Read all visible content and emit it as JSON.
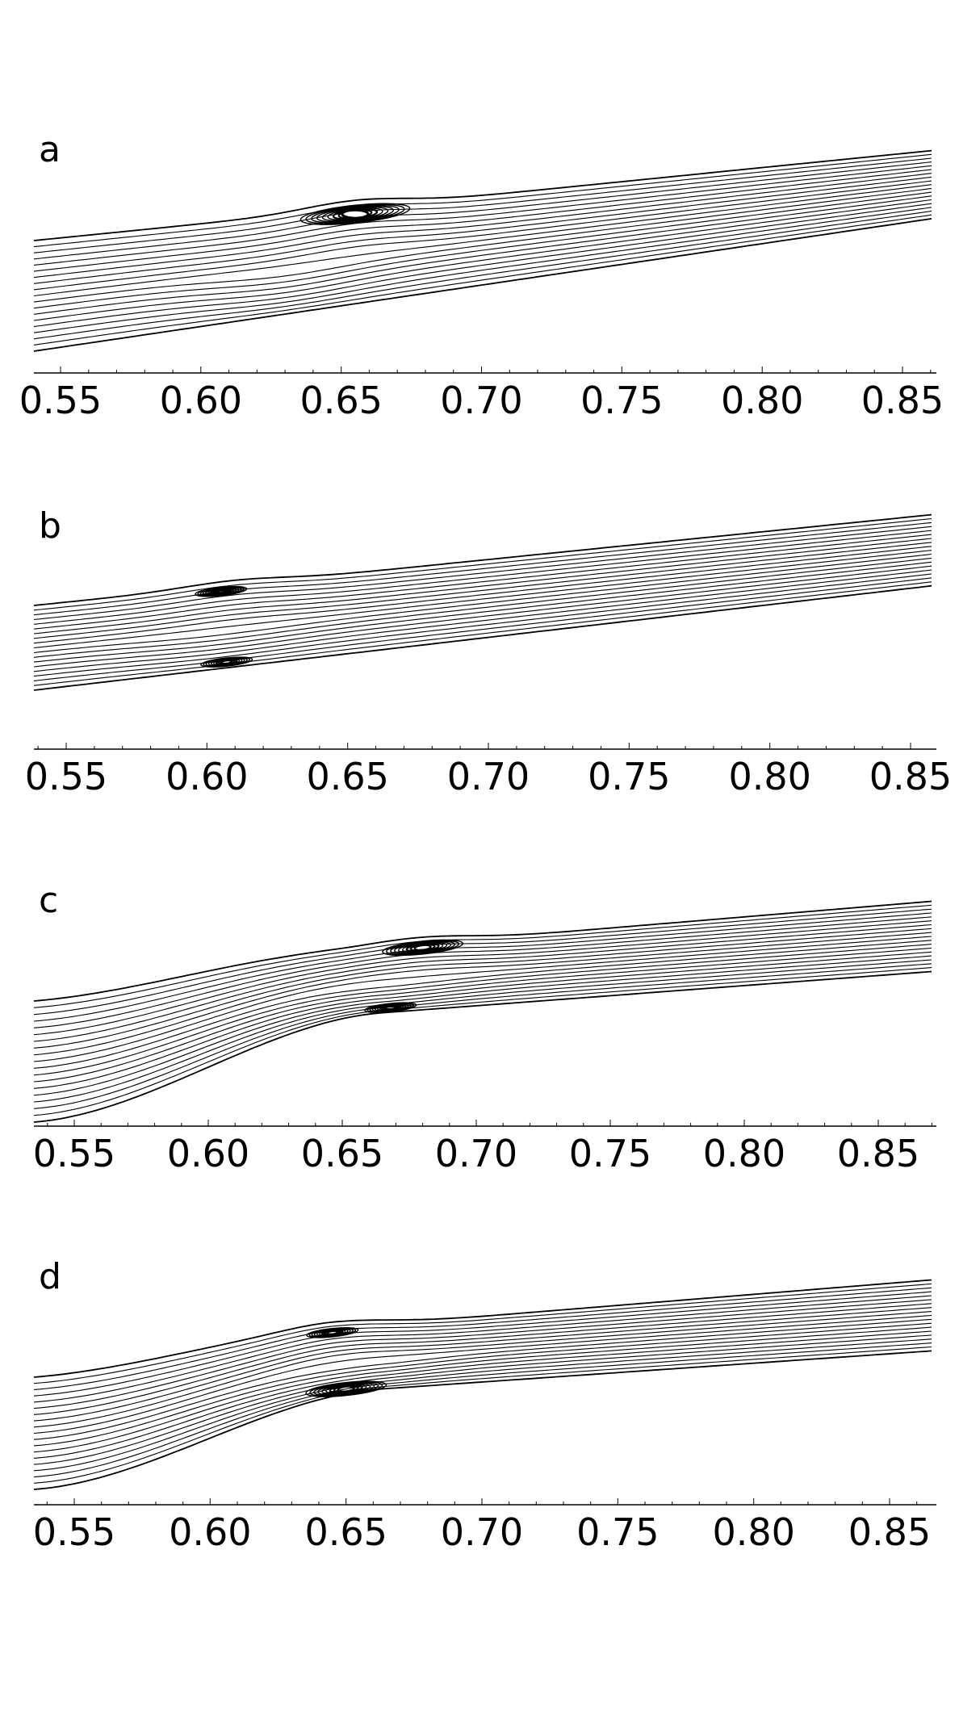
{
  "figure": {
    "panels": [
      {
        "label": "a",
        "tick_labels": [
          "0.55",
          "0.60",
          "0.65",
          "0.70",
          "0.75",
          "0.80",
          "0.85"
        ],
        "channel": {
          "inlet_top": 0.0,
          "inlet_bottom": 1.0
        },
        "vortices": [
          {
            "side": "top",
            "x": 0.655,
            "size": "large"
          }
        ]
      },
      {
        "label": "b",
        "tick_labels": [
          "0.55",
          "0.60",
          "0.65",
          "0.70",
          "0.75",
          "0.80",
          "0.85"
        ],
        "vortices": [
          {
            "side": "top",
            "x": 0.605,
            "size": "small"
          },
          {
            "side": "bottom",
            "x": 0.607,
            "size": "small"
          }
        ]
      },
      {
        "label": "c",
        "tick_labels": [
          "0.55",
          "0.60",
          "0.65",
          "0.70",
          "0.75",
          "0.80",
          "0.85"
        ],
        "vortices": [
          {
            "side": "top",
            "x": 0.68,
            "size": "medium"
          },
          {
            "side": "bottom",
            "x": 0.668,
            "size": "small"
          }
        ]
      },
      {
        "label": "d",
        "tick_labels": [
          "0.55",
          "0.60",
          "0.65",
          "0.70",
          "0.75",
          "0.80",
          "0.85"
        ],
        "vortices": [
          {
            "side": "top",
            "x": 0.645,
            "size": "small"
          },
          {
            "side": "bottom",
            "x": 0.65,
            "size": "medium"
          }
        ]
      }
    ]
  }
}
